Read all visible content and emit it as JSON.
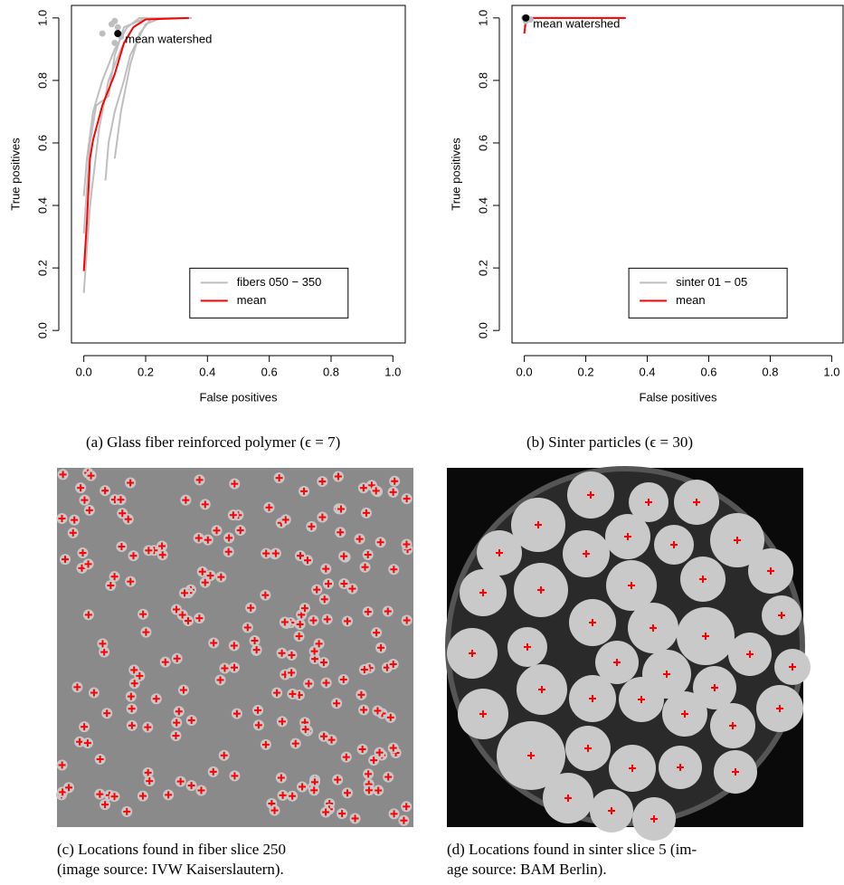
{
  "chart_data": [
    {
      "type": "line",
      "xlabel": "False positives",
      "ylabel": "True positives",
      "xlim": [
        -0.04,
        1.04
      ],
      "ylim": [
        -0.04,
        1.04
      ],
      "xticks": [
        {
          "value": 0,
          "label": "0.0"
        },
        0.2,
        0.4,
        0.6,
        0.8,
        {
          "value": 1,
          "label": "1.0"
        }
      ],
      "yticks": [
        {
          "value": 0,
          "label": "0.0"
        },
        0.2,
        0.4,
        0.6,
        0.8,
        {
          "value": 1,
          "label": "1.0"
        }
      ],
      "legend": "bottom-right",
      "series": [
        {
          "name": "fibers 050 − 350",
          "color": "#bebebe",
          "x": [
            0,
            0.02,
            0.05,
            0.08,
            0.12,
            0.16,
            0.2,
            0.3,
            null,
            0,
            0.02,
            0.04,
            0.08,
            0.1,
            0.13,
            0.2,
            0.35,
            null,
            0.07,
            0.08,
            0.1,
            0.13,
            0.15,
            0.2,
            0.25,
            null,
            0,
            0.01,
            0.03,
            0.06,
            0.1,
            0.14,
            0.18,
            0.27,
            null,
            0.1,
            0.12,
            0.15,
            0.18,
            0.22,
            0.3
          ],
          "values": [
            0.12,
            0.4,
            0.65,
            0.8,
            0.9,
            0.97,
            1,
            1,
            null,
            0.31,
            0.6,
            0.72,
            0.75,
            0.88,
            0.97,
            1,
            1,
            null,
            0.48,
            0.6,
            0.7,
            0.8,
            0.88,
            0.98,
            1,
            null,
            0.43,
            0.55,
            0.7,
            0.8,
            0.9,
            0.97,
            1,
            1,
            null,
            0.55,
            0.7,
            0.85,
            0.95,
            1,
            1
          ]
        },
        {
          "name": "mean",
          "color": "#ff0000",
          "x": [
            0,
            0.01,
            0.02,
            0.03,
            0.06,
            0.1,
            0.13,
            0.16,
            0.2,
            0.34
          ],
          "values": [
            0.19,
            0.35,
            0.55,
            0.61,
            0.72,
            0.82,
            0.92,
            0.97,
            0.995,
            1
          ]
        }
      ],
      "watershed_points": {
        "color": "#bebebe",
        "x": [
          0.06,
          0.09,
          0.1,
          0.11,
          0.12,
          0.1
        ],
        "values": [
          0.95,
          0.98,
          0.92,
          0.97,
          0.94,
          0.99
        ]
      },
      "annotation": {
        "text": "mean watershed",
        "x": 0.11,
        "y": 0.95,
        "color": "#000000"
      },
      "caption": "(a) Glass fiber reinforced polymer (ϵ = 7)"
    },
    {
      "type": "line",
      "xlabel": "False positives",
      "ylabel": "True positives",
      "xlim": [
        -0.04,
        1.04
      ],
      "ylim": [
        -0.04,
        1.04
      ],
      "xticks": [
        {
          "value": 0,
          "label": "0.0"
        },
        0.2,
        0.4,
        0.6,
        0.8,
        {
          "value": 1,
          "label": "1.0"
        }
      ],
      "yticks": [
        {
          "value": 0,
          "label": "0.0"
        },
        0.2,
        0.4,
        0.6,
        0.8,
        {
          "value": 1,
          "label": "1.0"
        }
      ],
      "legend": "bottom-right",
      "series": [
        {
          "name": "sinter 01 − 05",
          "color": "#bebebe",
          "x": [
            0,
            0.01,
            0.33,
            null,
            0.002,
            0.02,
            0.3
          ],
          "values": [
            0.97,
            1,
            1,
            null,
            0.98,
            1,
            1
          ]
        },
        {
          "name": "mean",
          "color": "#ff0000",
          "x": [
            0,
            0.005,
            0.01,
            0.33
          ],
          "values": [
            0.95,
            0.99,
            1,
            1
          ]
        }
      ],
      "watershed_points": {
        "color": "#bebebe",
        "x": [
          0,
          0.01,
          0.02,
          0.005
        ],
        "values": [
          1,
          1,
          0.995,
          0.99
        ]
      },
      "annotation": {
        "text": "mean watershed",
        "x": 0.005,
        "y": 1,
        "color": "#000000"
      },
      "caption": "(b) Sinter particles (ϵ = 30)"
    }
  ],
  "images": [
    {
      "caption_lines": [
        "(c) Locations found in fiber slice 250",
        "(image source: IVW Kaiserslautern)."
      ]
    },
    {
      "caption_lines": [
        "(d) Locations found in sinter slice 5 (im-",
        "age source: BAM Berlin)."
      ]
    }
  ]
}
